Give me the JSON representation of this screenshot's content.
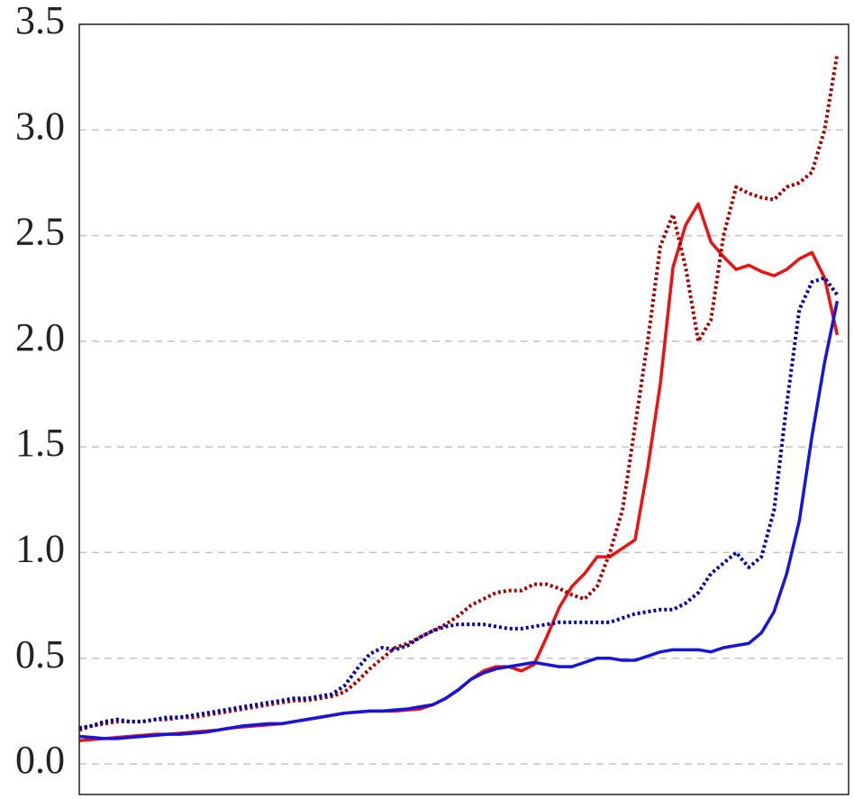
{
  "chart_data": {
    "type": "line",
    "x": [
      0,
      1,
      2,
      3,
      4,
      5,
      6,
      7,
      8,
      9,
      10,
      11,
      12,
      13,
      14,
      15,
      16,
      17,
      18,
      19,
      20,
      21,
      22,
      23,
      24,
      25,
      26,
      27,
      28,
      29,
      30,
      31,
      32,
      33,
      34,
      35,
      36,
      37,
      38,
      39,
      40,
      41,
      42,
      43,
      44,
      45,
      46,
      47,
      48,
      49,
      50,
      51,
      52,
      53,
      54,
      55,
      56,
      57,
      58,
      59,
      60
    ],
    "xlim": [
      0,
      60.9
    ],
    "ylim": [
      -0.145,
      3.5
    ],
    "yticks": [
      {
        "value": 0,
        "label": "0.0"
      },
      0.5,
      {
        "value": 1,
        "label": "1.0"
      },
      1.5,
      {
        "value": 2,
        "label": "2.0"
      },
      2.5,
      {
        "value": 3,
        "label": "3.0"
      },
      3.5
    ],
    "grid": true,
    "series": [
      {
        "color": "#ee1111",
        "linestyle": "solid",
        "values": [
          0.11,
          0.115,
          0.12,
          0.125,
          0.13,
          0.135,
          0.14,
          0.14,
          0.145,
          0.15,
          0.155,
          0.16,
          0.17,
          0.175,
          0.18,
          0.185,
          0.19,
          0.2,
          0.21,
          0.22,
          0.23,
          0.24,
          0.245,
          0.25,
          0.25,
          0.25,
          0.255,
          0.26,
          0.28,
          0.31,
          0.35,
          0.4,
          0.44,
          0.46,
          0.46,
          0.44,
          0.47,
          0.6,
          0.74,
          0.84,
          0.9,
          0.98,
          0.98,
          1.02,
          1.06,
          1.4,
          1.8,
          2.35,
          2.55,
          2.65,
          2.47,
          2.4,
          2.34,
          2.36,
          2.33,
          2.31,
          2.34,
          2.39,
          2.42,
          2.3,
          2.03
        ]
      },
      {
        "color": "#aa0000",
        "linestyle": "dotted",
        "values": [
          0.16,
          0.18,
          0.19,
          0.2,
          0.2,
          0.2,
          0.21,
          0.21,
          0.22,
          0.22,
          0.23,
          0.24,
          0.25,
          0.26,
          0.27,
          0.28,
          0.29,
          0.3,
          0.3,
          0.31,
          0.32,
          0.34,
          0.39,
          0.45,
          0.5,
          0.55,
          0.57,
          0.6,
          0.63,
          0.66,
          0.7,
          0.75,
          0.78,
          0.81,
          0.82,
          0.82,
          0.85,
          0.85,
          0.83,
          0.8,
          0.78,
          0.84,
          1.0,
          1.2,
          1.6,
          2.0,
          2.45,
          2.6,
          2.35,
          2.0,
          2.1,
          2.5,
          2.73,
          2.7,
          2.68,
          2.67,
          2.73,
          2.75,
          2.8,
          3.0,
          3.36
        ]
      },
      {
        "color": "#1515dd",
        "linestyle": "solid",
        "values": [
          0.13,
          0.125,
          0.12,
          0.12,
          0.125,
          0.13,
          0.135,
          0.14,
          0.14,
          0.145,
          0.15,
          0.16,
          0.17,
          0.18,
          0.185,
          0.19,
          0.19,
          0.2,
          0.21,
          0.22,
          0.23,
          0.24,
          0.245,
          0.25,
          0.25,
          0.255,
          0.26,
          0.27,
          0.28,
          0.31,
          0.35,
          0.4,
          0.43,
          0.45,
          0.46,
          0.47,
          0.48,
          0.47,
          0.46,
          0.46,
          0.48,
          0.5,
          0.5,
          0.49,
          0.49,
          0.51,
          0.53,
          0.54,
          0.54,
          0.54,
          0.53,
          0.55,
          0.56,
          0.57,
          0.62,
          0.72,
          0.9,
          1.15,
          1.55,
          1.9,
          2.19
        ]
      },
      {
        "color": "#0000aa",
        "linestyle": "dotted",
        "values": [
          0.17,
          0.18,
          0.2,
          0.21,
          0.2,
          0.2,
          0.21,
          0.22,
          0.22,
          0.23,
          0.24,
          0.25,
          0.26,
          0.27,
          0.28,
          0.29,
          0.3,
          0.31,
          0.31,
          0.32,
          0.33,
          0.37,
          0.45,
          0.52,
          0.55,
          0.54,
          0.56,
          0.6,
          0.63,
          0.65,
          0.66,
          0.66,
          0.66,
          0.65,
          0.64,
          0.64,
          0.65,
          0.66,
          0.67,
          0.67,
          0.67,
          0.67,
          0.67,
          0.69,
          0.71,
          0.72,
          0.73,
          0.73,
          0.76,
          0.81,
          0.9,
          0.95,
          1.0,
          0.93,
          0.98,
          1.2,
          1.7,
          2.15,
          2.28,
          2.3,
          2.22
        ]
      }
    ]
  }
}
